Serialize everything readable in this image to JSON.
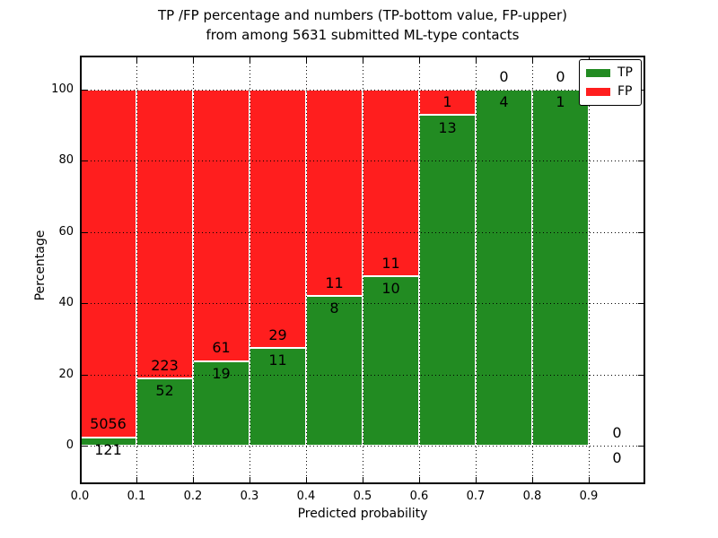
{
  "figure": {
    "title_line1": "TP /FP percentage and numbers (TP-bottom value, FP-upper)",
    "title_line2": "from among 5631 submitted ML-type contacts"
  },
  "chart_data": {
    "type": "bar",
    "subtype": "stacked-percentage-histogram",
    "title": "TP /FP percentage and numbers (TP-bottom value, FP-upper)\nfrom among 5631 submitted ML-type contacts",
    "xlabel": "Predicted probability",
    "ylabel": "Percentage",
    "bin_starts": [
      0.0,
      0.1,
      0.2,
      0.3,
      0.4,
      0.5,
      0.6,
      0.7,
      0.8,
      0.9
    ],
    "bin_width": 0.1,
    "series": [
      {
        "name": "TP",
        "color": "#228b22",
        "counts": [
          121,
          52,
          19,
          11,
          8,
          10,
          13,
          4,
          1,
          0
        ]
      },
      {
        "name": "FP",
        "color": "#ff1e1e",
        "counts": [
          5056,
          223,
          61,
          29,
          11,
          11,
          1,
          0,
          0,
          0
        ]
      }
    ],
    "tp_percent_of_bin": [
      2.3,
      18.9,
      23.8,
      27.5,
      42.1,
      47.6,
      92.9,
      100.0,
      100.0,
      null
    ],
    "bar_value_labels": {
      "tp": [
        "121",
        "52",
        "19",
        "11",
        "8",
        "10",
        "13",
        "4",
        "1",
        "0"
      ],
      "fp": [
        "5056",
        "223",
        "61",
        "29",
        "11",
        "11",
        "1",
        "0",
        "0",
        "0"
      ]
    },
    "xtick_labels": [
      "0.0",
      "0.1",
      "0.2",
      "0.3",
      "0.4",
      "0.5",
      "0.6",
      "0.7",
      "0.8",
      "0.9"
    ],
    "ytick_values": [
      0,
      20,
      40,
      60,
      80,
      100
    ],
    "xlim": [
      0.0,
      1.0
    ],
    "ylim": [
      -11,
      110
    ],
    "grid": "dotted black, both axes, drawn over bars",
    "bar_edge_color": "#ffffff",
    "legend_position": "upper right",
    "n_total_submitted": 5631
  }
}
